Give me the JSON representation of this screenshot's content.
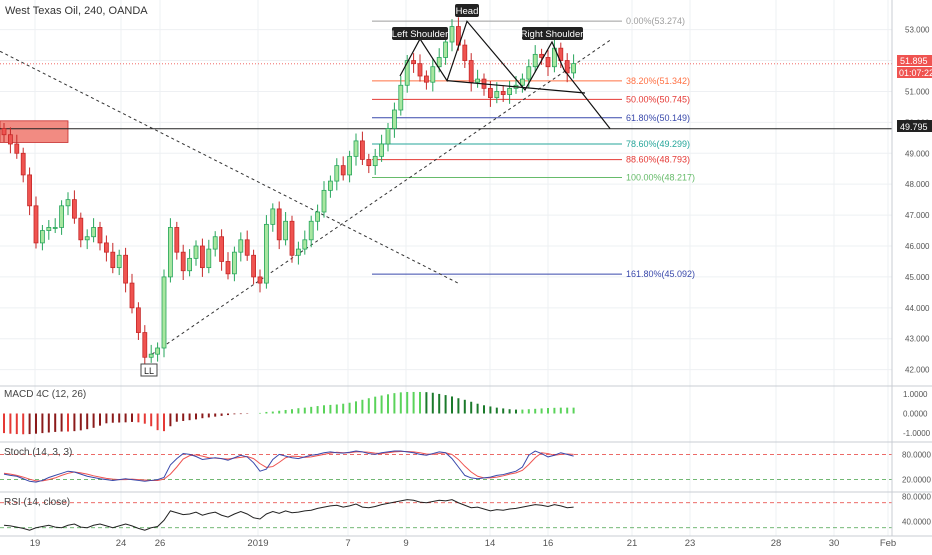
{
  "chart_data": {
    "type": "candlestick",
    "symbol_title": "West Texas Oil, 240, OANDA",
    "colors": {
      "up": "#26a65b",
      "up_fill": "#a8e6a0",
      "down": "#c62828",
      "down_fill": "#ef5350",
      "grid": "#eef0f3",
      "text": "#555555",
      "fib_0": "#9e9e9e",
      "fib_382": "#ff7043",
      "fib_50": "#e53935",
      "fib_618": "#3949ab",
      "fib_786": "#26a69a",
      "fib_886": "#e53935",
      "fib_100": "#66bb6a",
      "fib_1618": "#3949ab",
      "supply_zone": "#f28b82"
    },
    "price_axis": {
      "ticks": [
        "53.000",
        "52.000",
        "51.000",
        "50.000",
        "49.000",
        "48.000",
        "47.000",
        "46.000",
        "45.000",
        "44.000",
        "43.000",
        "42.000"
      ],
      "ylim": [
        41.6,
        53.7
      ]
    },
    "time_axis": {
      "ticks": [
        "19",
        "24",
        "26",
        "2019",
        "7",
        "9",
        "14",
        "16",
        "21",
        "23",
        "28",
        "30",
        "Feb"
      ]
    },
    "price_labels": {
      "last_price": "51.895",
      "countdown": "01:07:22",
      "level": "49.795"
    },
    "level_line": 49.795,
    "last_price_line": 51.895,
    "fib_levels": [
      {
        "label": "0.00%(53.274)",
        "price": 53.274,
        "color_key": "fib_0"
      },
      {
        "label": "38.20%(51.342)",
        "price": 51.342,
        "color_key": "fib_382"
      },
      {
        "label": "50.00%(50.745)",
        "price": 50.745,
        "color_key": "fib_50"
      },
      {
        "label": "61.80%(50.149)",
        "price": 50.149,
        "color_key": "fib_618"
      },
      {
        "label": "78.60%(49.299)",
        "price": 49.299,
        "color_key": "fib_786"
      },
      {
        "label": "88.60%(48.793)",
        "price": 48.793,
        "color_key": "fib_886"
      },
      {
        "label": "100.00%(48.217)",
        "price": 48.217,
        "color_key": "fib_100"
      },
      {
        "label": "161.80%(45.092)",
        "price": 45.092,
        "color_key": "fib_1618"
      }
    ],
    "annotations": {
      "left_shoulder": "Left Shoulder",
      "head": "Head",
      "right_shoulder": "Right Shoulder",
      "low": "LL"
    },
    "close_prices": [
      49.6,
      49.3,
      49.0,
      48.3,
      47.3,
      46.1,
      46.5,
      46.6,
      46.6,
      47.3,
      47.5,
      46.9,
      46.2,
      46.3,
      46.6,
      46.1,
      45.8,
      45.3,
      45.7,
      44.8,
      44.0,
      43.2,
      42.4,
      42.5,
      42.7,
      45.0,
      46.6,
      45.8,
      45.2,
      45.6,
      46.0,
      45.3,
      45.9,
      46.3,
      45.5,
      45.1,
      45.8,
      46.2,
      45.7,
      45.0,
      44.8,
      46.7,
      47.2,
      46.2,
      46.8,
      45.7,
      45.9,
      46.2,
      46.8,
      47.1,
      47.8,
      48.1,
      48.6,
      48.3,
      48.9,
      49.4,
      48.8,
      48.6,
      48.9,
      49.3,
      49.8,
      50.4,
      51.2,
      52.0,
      51.9,
      51.5,
      51.3,
      51.8,
      52.1,
      52.6,
      53.1,
      52.5,
      52.0,
      51.3,
      51.4,
      51.1,
      50.8,
      51.0,
      50.9,
      51.1,
      51.2,
      51.4,
      51.8,
      52.2,
      52.1,
      51.8,
      52.4,
      52.0,
      51.6,
      51.9
    ],
    "macd": {
      "label": "MACD 4C (12, 26)",
      "ticks": [
        "1.0000",
        "0.0000",
        "-1.0000"
      ],
      "ylim": [
        -1.25,
        1.2
      ],
      "histogram": [
        -1.0,
        -1.03,
        -1.05,
        -1.06,
        -1.05,
        -1.03,
        -1.0,
        -0.97,
        -0.94,
        -0.92,
        -0.92,
        -0.9,
        -0.86,
        -0.8,
        -0.73,
        -0.62,
        -0.5,
        -0.47,
        -0.46,
        -0.45,
        -0.43,
        -0.45,
        -0.52,
        -0.65,
        -0.85,
        -0.9,
        -0.65,
        -0.42,
        -0.38,
        -0.34,
        -0.3,
        -0.24,
        -0.2,
        -0.16,
        -0.12,
        -0.08,
        -0.04,
        -0.03,
        -0.02,
        0.0,
        0.03,
        0.08,
        0.1,
        0.14,
        0.18,
        0.22,
        0.27,
        0.3,
        0.34,
        0.38,
        0.42,
        0.44,
        0.46,
        0.5,
        0.55,
        0.62,
        0.7,
        0.78,
        0.86,
        0.92,
        0.98,
        1.04,
        1.08,
        1.1,
        1.1,
        1.1,
        1.09,
        1.06,
        1.0,
        0.94,
        0.87,
        0.78,
        0.7,
        0.6,
        0.5,
        0.42,
        0.36,
        0.3,
        0.26,
        0.22,
        0.2,
        0.2,
        0.22,
        0.24,
        0.26,
        0.28,
        0.29,
        0.3,
        0.3,
        0.3
      ]
    },
    "stoch": {
      "label": "Stoch (14, 3, 3)",
      "ticks": [
        "80.0000",
        "20.0000"
      ],
      "upper": 80,
      "lower": 20,
      "ylim": [
        0,
        100
      ],
      "k": [
        33,
        30,
        28,
        22,
        16,
        14,
        18,
        25,
        30,
        35,
        40,
        38,
        33,
        28,
        25,
        22,
        20,
        18,
        20,
        22,
        20,
        18,
        16,
        18,
        20,
        25,
        55,
        70,
        82,
        80,
        75,
        68,
        70,
        72,
        70,
        66,
        72,
        78,
        74,
        60,
        40,
        45,
        68,
        80,
        76,
        72,
        70,
        74,
        78,
        80,
        84,
        86,
        84,
        83,
        85,
        88,
        86,
        82,
        80,
        84,
        86,
        88,
        88,
        86,
        84,
        80,
        78,
        82,
        86,
        84,
        70,
        50,
        30,
        24,
        22,
        24,
        26,
        30,
        32,
        36,
        40,
        50,
        78,
        88,
        82,
        74,
        78,
        84,
        80,
        76
      ],
      "d": [
        35,
        33,
        30,
        26,
        21,
        17,
        17,
        20,
        24,
        30,
        35,
        38,
        36,
        33,
        29,
        26,
        23,
        21,
        20,
        20,
        21,
        20,
        19,
        18,
        18,
        21,
        33,
        50,
        69,
        77,
        79,
        76,
        72,
        71,
        70,
        69,
        71,
        73,
        75,
        70,
        58,
        49,
        51,
        61,
        72,
        76,
        75,
        73,
        74,
        77,
        80,
        83,
        85,
        84,
        84,
        86,
        86,
        85,
        83,
        82,
        84,
        86,
        87,
        87,
        86,
        84,
        81,
        80,
        82,
        84,
        80,
        68,
        52,
        38,
        28,
        24,
        24,
        26,
        29,
        33,
        36,
        42,
        56,
        72,
        84,
        82,
        78,
        80,
        81,
        80
      ]
    },
    "rsi": {
      "label": "RSI (14, close)",
      "ticks": [
        "80.0000",
        "40.0000"
      ],
      "upper": 70,
      "lower": 30,
      "ylim": [
        20,
        84
      ],
      "values": [
        34,
        33,
        31,
        29,
        26,
        30,
        32,
        34,
        31,
        30,
        34,
        36,
        31,
        30,
        34,
        36,
        33,
        30,
        33,
        36,
        33,
        29,
        26,
        30,
        32,
        42,
        57,
        54,
        51,
        52,
        55,
        50,
        53,
        55,
        50,
        47,
        52,
        56,
        52,
        46,
        44,
        52,
        56,
        53,
        57,
        54,
        55,
        57,
        58,
        61,
        63,
        65,
        66,
        63,
        65,
        68,
        63,
        62,
        64,
        67,
        69,
        71,
        73,
        75,
        74,
        71,
        70,
        72,
        74,
        73,
        75,
        70,
        66,
        62,
        63,
        60,
        57,
        59,
        58,
        60,
        61,
        63,
        65,
        67,
        66,
        64,
        67,
        65,
        62,
        63
      ]
    }
  }
}
